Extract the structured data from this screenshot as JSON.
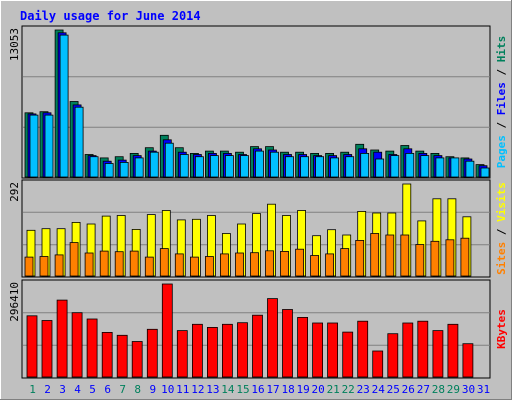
{
  "title": "Daily usage for June 2014",
  "colors": {
    "background": "#c0c0c0",
    "title": "#0000ff",
    "hits": "#00805c",
    "files": "#0000ff",
    "pages": "#00c0ff",
    "visits": "#ffff00",
    "sites": "#ff8000",
    "kbytes": "#ff0000",
    "weekend_label": "#00805c",
    "weekday_label": "#0000ff"
  },
  "chart_data": [
    {
      "type": "bar",
      "panel": "hits-files-pages",
      "right_label": [
        "Pages",
        " / ",
        "Files",
        " / ",
        "Hits"
      ],
      "ymax_label": "13053",
      "ylim": [
        0,
        13053
      ],
      "categories": [
        "1",
        "2",
        "3",
        "4",
        "5",
        "6",
        "7",
        "8",
        "9",
        "10",
        "11",
        "12",
        "13",
        "14",
        "15",
        "16",
        "17",
        "18",
        "19",
        "20",
        "21",
        "22",
        "23",
        "24",
        "25",
        "26",
        "27",
        "28",
        "29",
        "30",
        "31"
      ],
      "series": [
        {
          "name": "Hits",
          "values": [
            5700,
            5800,
            13053,
            6700,
            2000,
            1700,
            1800,
            2100,
            2600,
            3700,
            2600,
            2100,
            2300,
            2300,
            2200,
            2700,
            2700,
            2200,
            2200,
            2100,
            2100,
            2200,
            2900,
            2400,
            2300,
            2800,
            2300,
            2100,
            1800,
            1700,
            1100
          ]
        },
        {
          "name": "Files",
          "values": [
            5600,
            5700,
            12800,
            6400,
            1900,
            1400,
            1500,
            1900,
            2300,
            3300,
            2200,
            2000,
            2100,
            2100,
            2000,
            2500,
            2400,
            2000,
            2000,
            1900,
            1900,
            2000,
            2500,
            2200,
            2000,
            2500,
            2100,
            1900,
            1700,
            1600,
            1000
          ]
        },
        {
          "name": "Pages",
          "values": [
            5500,
            5500,
            12600,
            6200,
            1800,
            1200,
            1300,
            1700,
            2200,
            3000,
            2000,
            1800,
            1900,
            1900,
            1900,
            2300,
            2200,
            1800,
            1800,
            1800,
            1700,
            1800,
            2100,
            1600,
            1900,
            2100,
            1900,
            1700,
            1700,
            1400,
            800
          ]
        }
      ]
    },
    {
      "type": "bar",
      "panel": "visits-sites",
      "right_label": [
        "Sites",
        " / ",
        "Visits"
      ],
      "ymax_label": "292",
      "ylim": [
        0,
        292
      ],
      "categories": [
        "1",
        "2",
        "3",
        "4",
        "5",
        "6",
        "7",
        "8",
        "9",
        "10",
        "11",
        "12",
        "13",
        "14",
        "15",
        "16",
        "17",
        "18",
        "19",
        "20",
        "21",
        "22",
        "23",
        "24",
        "25",
        "26",
        "27",
        "28",
        "29",
        "30",
        "31"
      ],
      "series": [
        {
          "name": "Visits",
          "values": [
            145,
            150,
            150,
            170,
            165,
            190,
            192,
            148,
            195,
            208,
            178,
            180,
            192,
            135,
            165,
            198,
            228,
            192,
            208,
            128,
            147,
            130,
            205,
            200,
            200,
            292,
            175,
            245,
            245,
            188,
            0
          ]
        },
        {
          "name": "Sites",
          "values": [
            60,
            62,
            67,
            106,
            73,
            79,
            77,
            79,
            60,
            87,
            70,
            60,
            62,
            70,
            73,
            74,
            80,
            78,
            85,
            65,
            70,
            87,
            113,
            135,
            130,
            130,
            100,
            110,
            115,
            120,
            0
          ]
        }
      ]
    },
    {
      "type": "bar",
      "panel": "kbytes",
      "right_label": [
        "KBytes"
      ],
      "ymax_label": "296410",
      "ylim": [
        0,
        296410
      ],
      "categories": [
        "1",
        "2",
        "3",
        "4",
        "5",
        "6",
        "7",
        "8",
        "9",
        "10",
        "11",
        "12",
        "13",
        "14",
        "15",
        "16",
        "17",
        "18",
        "19",
        "20",
        "21",
        "22",
        "23",
        "24",
        "25",
        "26",
        "27",
        "28",
        "29",
        "30",
        "31"
      ],
      "series": [
        {
          "name": "KBytes",
          "values": [
            195000,
            180000,
            245000,
            205000,
            185000,
            142000,
            133000,
            113000,
            152000,
            296410,
            148000,
            168000,
            158000,
            168000,
            173000,
            197000,
            250000,
            215000,
            190000,
            172000,
            172000,
            143000,
            178000,
            83000,
            138000,
            172000,
            178000,
            148000,
            168000,
            106000,
            0
          ]
        }
      ]
    }
  ],
  "x_labels": [
    {
      "day": "1",
      "weekend": true
    },
    {
      "day": "2",
      "weekend": false
    },
    {
      "day": "3",
      "weekend": false
    },
    {
      "day": "4",
      "weekend": false
    },
    {
      "day": "5",
      "weekend": false
    },
    {
      "day": "6",
      "weekend": false
    },
    {
      "day": "7",
      "weekend": true
    },
    {
      "day": "8",
      "weekend": true
    },
    {
      "day": "9",
      "weekend": false
    },
    {
      "day": "10",
      "weekend": false
    },
    {
      "day": "11",
      "weekend": false
    },
    {
      "day": "12",
      "weekend": false
    },
    {
      "day": "13",
      "weekend": false
    },
    {
      "day": "14",
      "weekend": true
    },
    {
      "day": "15",
      "weekend": true
    },
    {
      "day": "16",
      "weekend": false
    },
    {
      "day": "17",
      "weekend": false
    },
    {
      "day": "18",
      "weekend": false
    },
    {
      "day": "19",
      "weekend": false
    },
    {
      "day": "20",
      "weekend": false
    },
    {
      "day": "21",
      "weekend": true
    },
    {
      "day": "22",
      "weekend": true
    },
    {
      "day": "23",
      "weekend": false
    },
    {
      "day": "24",
      "weekend": false
    },
    {
      "day": "25",
      "weekend": false
    },
    {
      "day": "26",
      "weekend": false
    },
    {
      "day": "27",
      "weekend": false
    },
    {
      "day": "28",
      "weekend": true
    },
    {
      "day": "29",
      "weekend": true
    },
    {
      "day": "30",
      "weekend": false
    },
    {
      "day": "31",
      "weekend": false
    }
  ]
}
